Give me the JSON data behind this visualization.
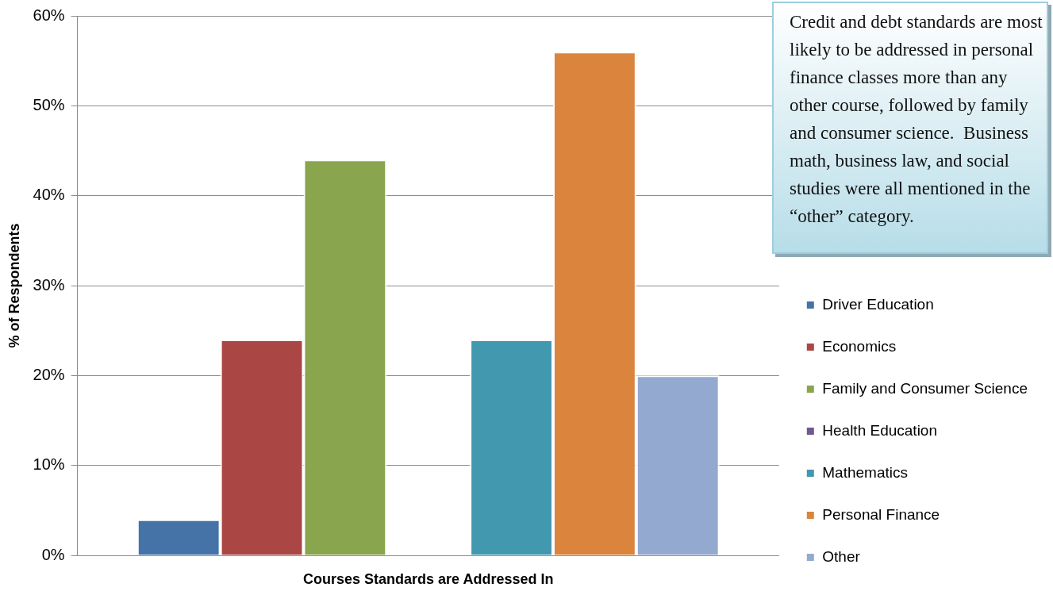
{
  "chart_data": {
    "type": "bar",
    "categories": [
      null
    ],
    "xlabel": "Courses Standards are Addressed In",
    "ylabel": "% of Respondents",
    "series": [
      {
        "name": "Driver Education",
        "color": "#4572a7",
        "values": [
          4
        ]
      },
      {
        "name": "Economics",
        "color": "#aa4643",
        "values": [
          24
        ]
      },
      {
        "name": "Family and Consumer Science",
        "color": "#89a54e",
        "values": [
          44
        ]
      },
      {
        "name": "Health Education",
        "color": "#71588f",
        "values": [
          0
        ]
      },
      {
        "name": "Mathematics",
        "color": "#4198af",
        "values": [
          24
        ]
      },
      {
        "name": "Personal Finance",
        "color": "#db843d",
        "values": [
          56
        ]
      },
      {
        "name": "Other",
        "color": "#93a9cf",
        "values": [
          20
        ]
      }
    ],
    "ylim": [
      0,
      60
    ],
    "yticks": [
      {
        "value": 0,
        "label": "0%"
      },
      {
        "value": 10,
        "label": "10%"
      },
      {
        "value": 20,
        "label": "20%"
      },
      {
        "value": 30,
        "label": "30%"
      },
      {
        "value": 40,
        "label": "40%"
      },
      {
        "value": 50,
        "label": "50%"
      },
      {
        "value": 60,
        "label": "60%"
      }
    ],
    "grid": "y",
    "legend": "right",
    "annotations": [
      "Credit and debt standards are most likely to be addressed in personal finance classes more than any other course, followed by family and consumer science.  Business math, business law, and social studies were all mentioned in the “other” category."
    ]
  }
}
